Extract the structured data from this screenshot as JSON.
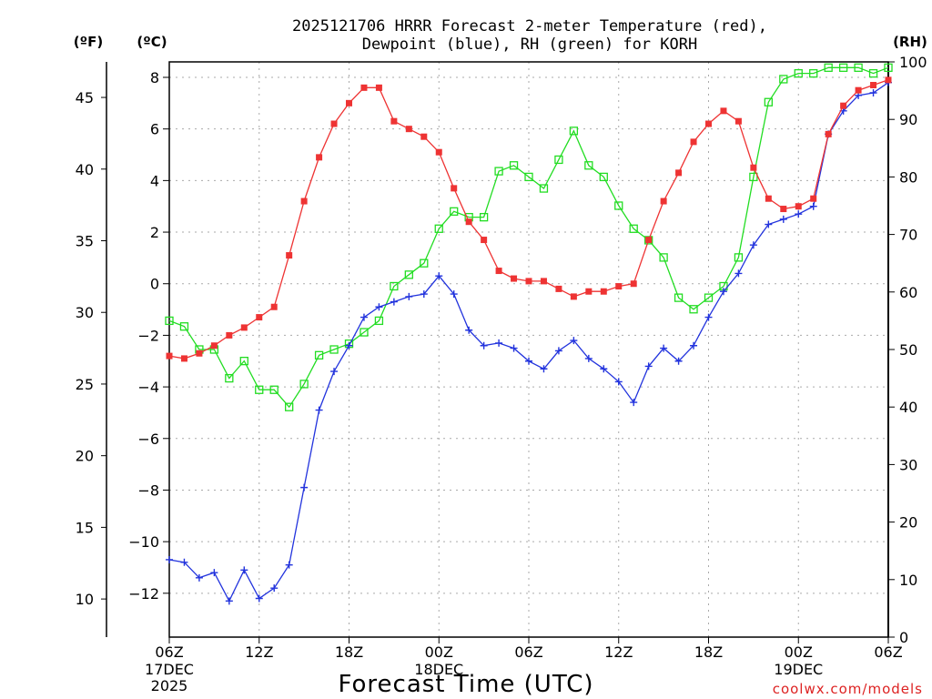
{
  "chart_data": {
    "type": "line",
    "title_line1": "2025121706 HRRR Forecast 2-meter Temperature (red),",
    "title_line2": "Dewpoint (blue), RH (green) for KORH",
    "xlabel": "Forecast Time (UTC)",
    "watermark": "coolwx.com/models",
    "unit_labels": {
      "f": "(ºF)",
      "c": "(ºC)",
      "rh": "(RH)"
    },
    "x_range": [
      0,
      48
    ],
    "celsius_range": [
      -13.7,
      8.6
    ],
    "rh_range": [
      0,
      100
    ],
    "fahrenheit_ticks": [
      10,
      15,
      20,
      25,
      30,
      35,
      40,
      45
    ],
    "celsius_ticks": [
      -12,
      -10,
      -8,
      -6,
      -4,
      -2,
      0,
      2,
      4,
      6,
      8
    ],
    "rh_ticks": [
      0,
      10,
      20,
      30,
      40,
      50,
      60,
      70,
      80,
      90,
      100
    ],
    "x_ticks": [
      {
        "hour": 0,
        "label": "06Z"
      },
      {
        "hour": 6,
        "label": "12Z"
      },
      {
        "hour": 12,
        "label": "18Z"
      },
      {
        "hour": 18,
        "label": "00Z"
      },
      {
        "hour": 24,
        "label": "06Z"
      },
      {
        "hour": 30,
        "label": "12Z"
      },
      {
        "hour": 36,
        "label": "18Z"
      },
      {
        "hour": 42,
        "label": "00Z"
      },
      {
        "hour": 48,
        "label": "06Z"
      }
    ],
    "date_labels": [
      {
        "hour": 0,
        "lines": [
          "17DEC",
          "2025"
        ]
      },
      {
        "hour": 18,
        "lines": [
          "18DEC"
        ]
      },
      {
        "hour": 42,
        "lines": [
          "19DEC"
        ]
      }
    ],
    "series": [
      {
        "name": "Temperature",
        "unit": "C",
        "color": "#ee3333",
        "marker": "filled-square",
        "values": [
          -2.8,
          -2.9,
          -2.7,
          -2.4,
          -2.0,
          -1.7,
          -1.3,
          -0.9,
          1.1,
          3.2,
          4.9,
          6.2,
          7.0,
          7.6,
          7.6,
          6.3,
          6.0,
          5.7,
          5.1,
          3.7,
          2.4,
          1.7,
          0.5,
          0.2,
          0.1,
          0.1,
          -0.2,
          -0.5,
          -0.3,
          -0.3,
          -0.1,
          0.0,
          1.7,
          3.2,
          4.3,
          5.5,
          6.2,
          6.7,
          6.3,
          4.5,
          3.3,
          2.9,
          3.0,
          3.3,
          5.8,
          6.9,
          7.5,
          7.7,
          7.9
        ]
      },
      {
        "name": "Dewpoint",
        "unit": "C",
        "color": "#2233dd",
        "marker": "plus",
        "values": [
          -10.7,
          -10.8,
          -11.4,
          -11.2,
          -12.3,
          -11.1,
          -12.2,
          -11.8,
          -10.9,
          -7.9,
          -4.9,
          -3.4,
          -2.4,
          -1.3,
          -0.9,
          -0.7,
          -0.5,
          -0.4,
          0.3,
          -0.4,
          -1.8,
          -2.4,
          -2.3,
          -2.5,
          -3.0,
          -3.3,
          -2.6,
          -2.2,
          -2.9,
          -3.3,
          -3.8,
          -4.6,
          -3.2,
          -2.5,
          -3.0,
          -2.4,
          -1.3,
          -0.3,
          0.4,
          1.5,
          2.3,
          2.5,
          2.7,
          3.0,
          5.8,
          6.7,
          7.3,
          7.4,
          7.8
        ]
      },
      {
        "name": "RH",
        "unit": "%",
        "color": "#22dd22",
        "marker": "open-square",
        "values": [
          55,
          54,
          50,
          50,
          45,
          48,
          43,
          43,
          40,
          44,
          49,
          50,
          51,
          53,
          55,
          61,
          63,
          65,
          71,
          74,
          73,
          73,
          81,
          82,
          80,
          78,
          83,
          88,
          82,
          80,
          75,
          71,
          69,
          66,
          59,
          57,
          59,
          61,
          66,
          80,
          93,
          97,
          98,
          98,
          99,
          99,
          99,
          98,
          99
        ]
      }
    ]
  }
}
